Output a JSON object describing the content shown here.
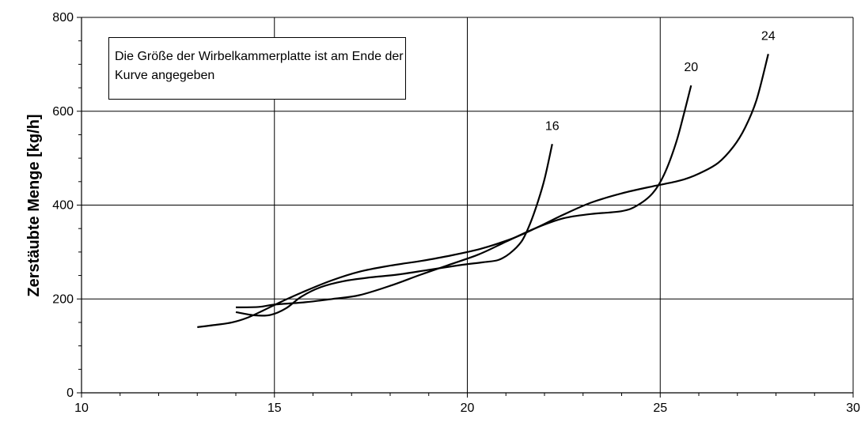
{
  "chart_data": {
    "type": "line",
    "title": "",
    "xlabel": "",
    "ylabel": "Zerstäubte Menge [kg/h]",
    "xlim": [
      10,
      30
    ],
    "ylim": [
      0,
      800
    ],
    "x_ticks": [
      10,
      15,
      20,
      25,
      30
    ],
    "y_ticks": [
      0,
      200,
      400,
      600,
      800
    ],
    "x_minor_step": 1,
    "y_minor_step": 50,
    "grid": true,
    "annotation": "Die Größe der Wirbelkammerplatte ist am Ende der Kurve angegeben",
    "series": [
      {
        "name": "16",
        "points": [
          [
            14.0,
            172
          ],
          [
            14.5,
            165
          ],
          [
            14.9,
            166
          ],
          [
            15.3,
            180
          ],
          [
            15.7,
            205
          ],
          [
            16.2,
            225
          ],
          [
            16.8,
            238
          ],
          [
            17.5,
            246
          ],
          [
            18.2,
            252
          ],
          [
            19.0,
            262
          ],
          [
            19.8,
            272
          ],
          [
            20.4,
            278
          ],
          [
            20.8,
            283
          ],
          [
            21.1,
            297
          ],
          [
            21.4,
            322
          ],
          [
            21.6,
            355
          ],
          [
            21.8,
            400
          ],
          [
            22.0,
            455
          ],
          [
            22.2,
            530
          ]
        ]
      },
      {
        "name": "20",
        "points": [
          [
            14.0,
            182
          ],
          [
            14.6,
            183
          ],
          [
            15.0,
            188
          ],
          [
            15.8,
            193
          ],
          [
            16.5,
            200
          ],
          [
            17.2,
            208
          ],
          [
            18.0,
            228
          ],
          [
            18.8,
            252
          ],
          [
            19.5,
            272
          ],
          [
            20.3,
            295
          ],
          [
            21.0,
            322
          ],
          [
            21.8,
            352
          ],
          [
            22.5,
            372
          ],
          [
            23.2,
            381
          ],
          [
            24.0,
            387
          ],
          [
            24.4,
            399
          ],
          [
            24.8,
            425
          ],
          [
            25.1,
            465
          ],
          [
            25.4,
            530
          ],
          [
            25.6,
            590
          ],
          [
            25.8,
            655
          ]
        ]
      },
      {
        "name": "24",
        "points": [
          [
            13.0,
            140
          ],
          [
            13.5,
            145
          ],
          [
            13.9,
            150
          ],
          [
            14.3,
            160
          ],
          [
            14.7,
            175
          ],
          [
            15.2,
            195
          ],
          [
            15.8,
            217
          ],
          [
            16.5,
            240
          ],
          [
            17.2,
            258
          ],
          [
            18.0,
            271
          ],
          [
            18.8,
            281
          ],
          [
            19.6,
            293
          ],
          [
            20.4,
            308
          ],
          [
            21.2,
            330
          ],
          [
            21.8,
            352
          ],
          [
            22.5,
            380
          ],
          [
            23.2,
            405
          ],
          [
            24.0,
            425
          ],
          [
            24.8,
            440
          ],
          [
            25.5,
            452
          ],
          [
            26.0,
            467
          ],
          [
            26.5,
            490
          ],
          [
            26.9,
            525
          ],
          [
            27.2,
            565
          ],
          [
            27.5,
            625
          ],
          [
            27.8,
            722
          ]
        ]
      }
    ]
  }
}
